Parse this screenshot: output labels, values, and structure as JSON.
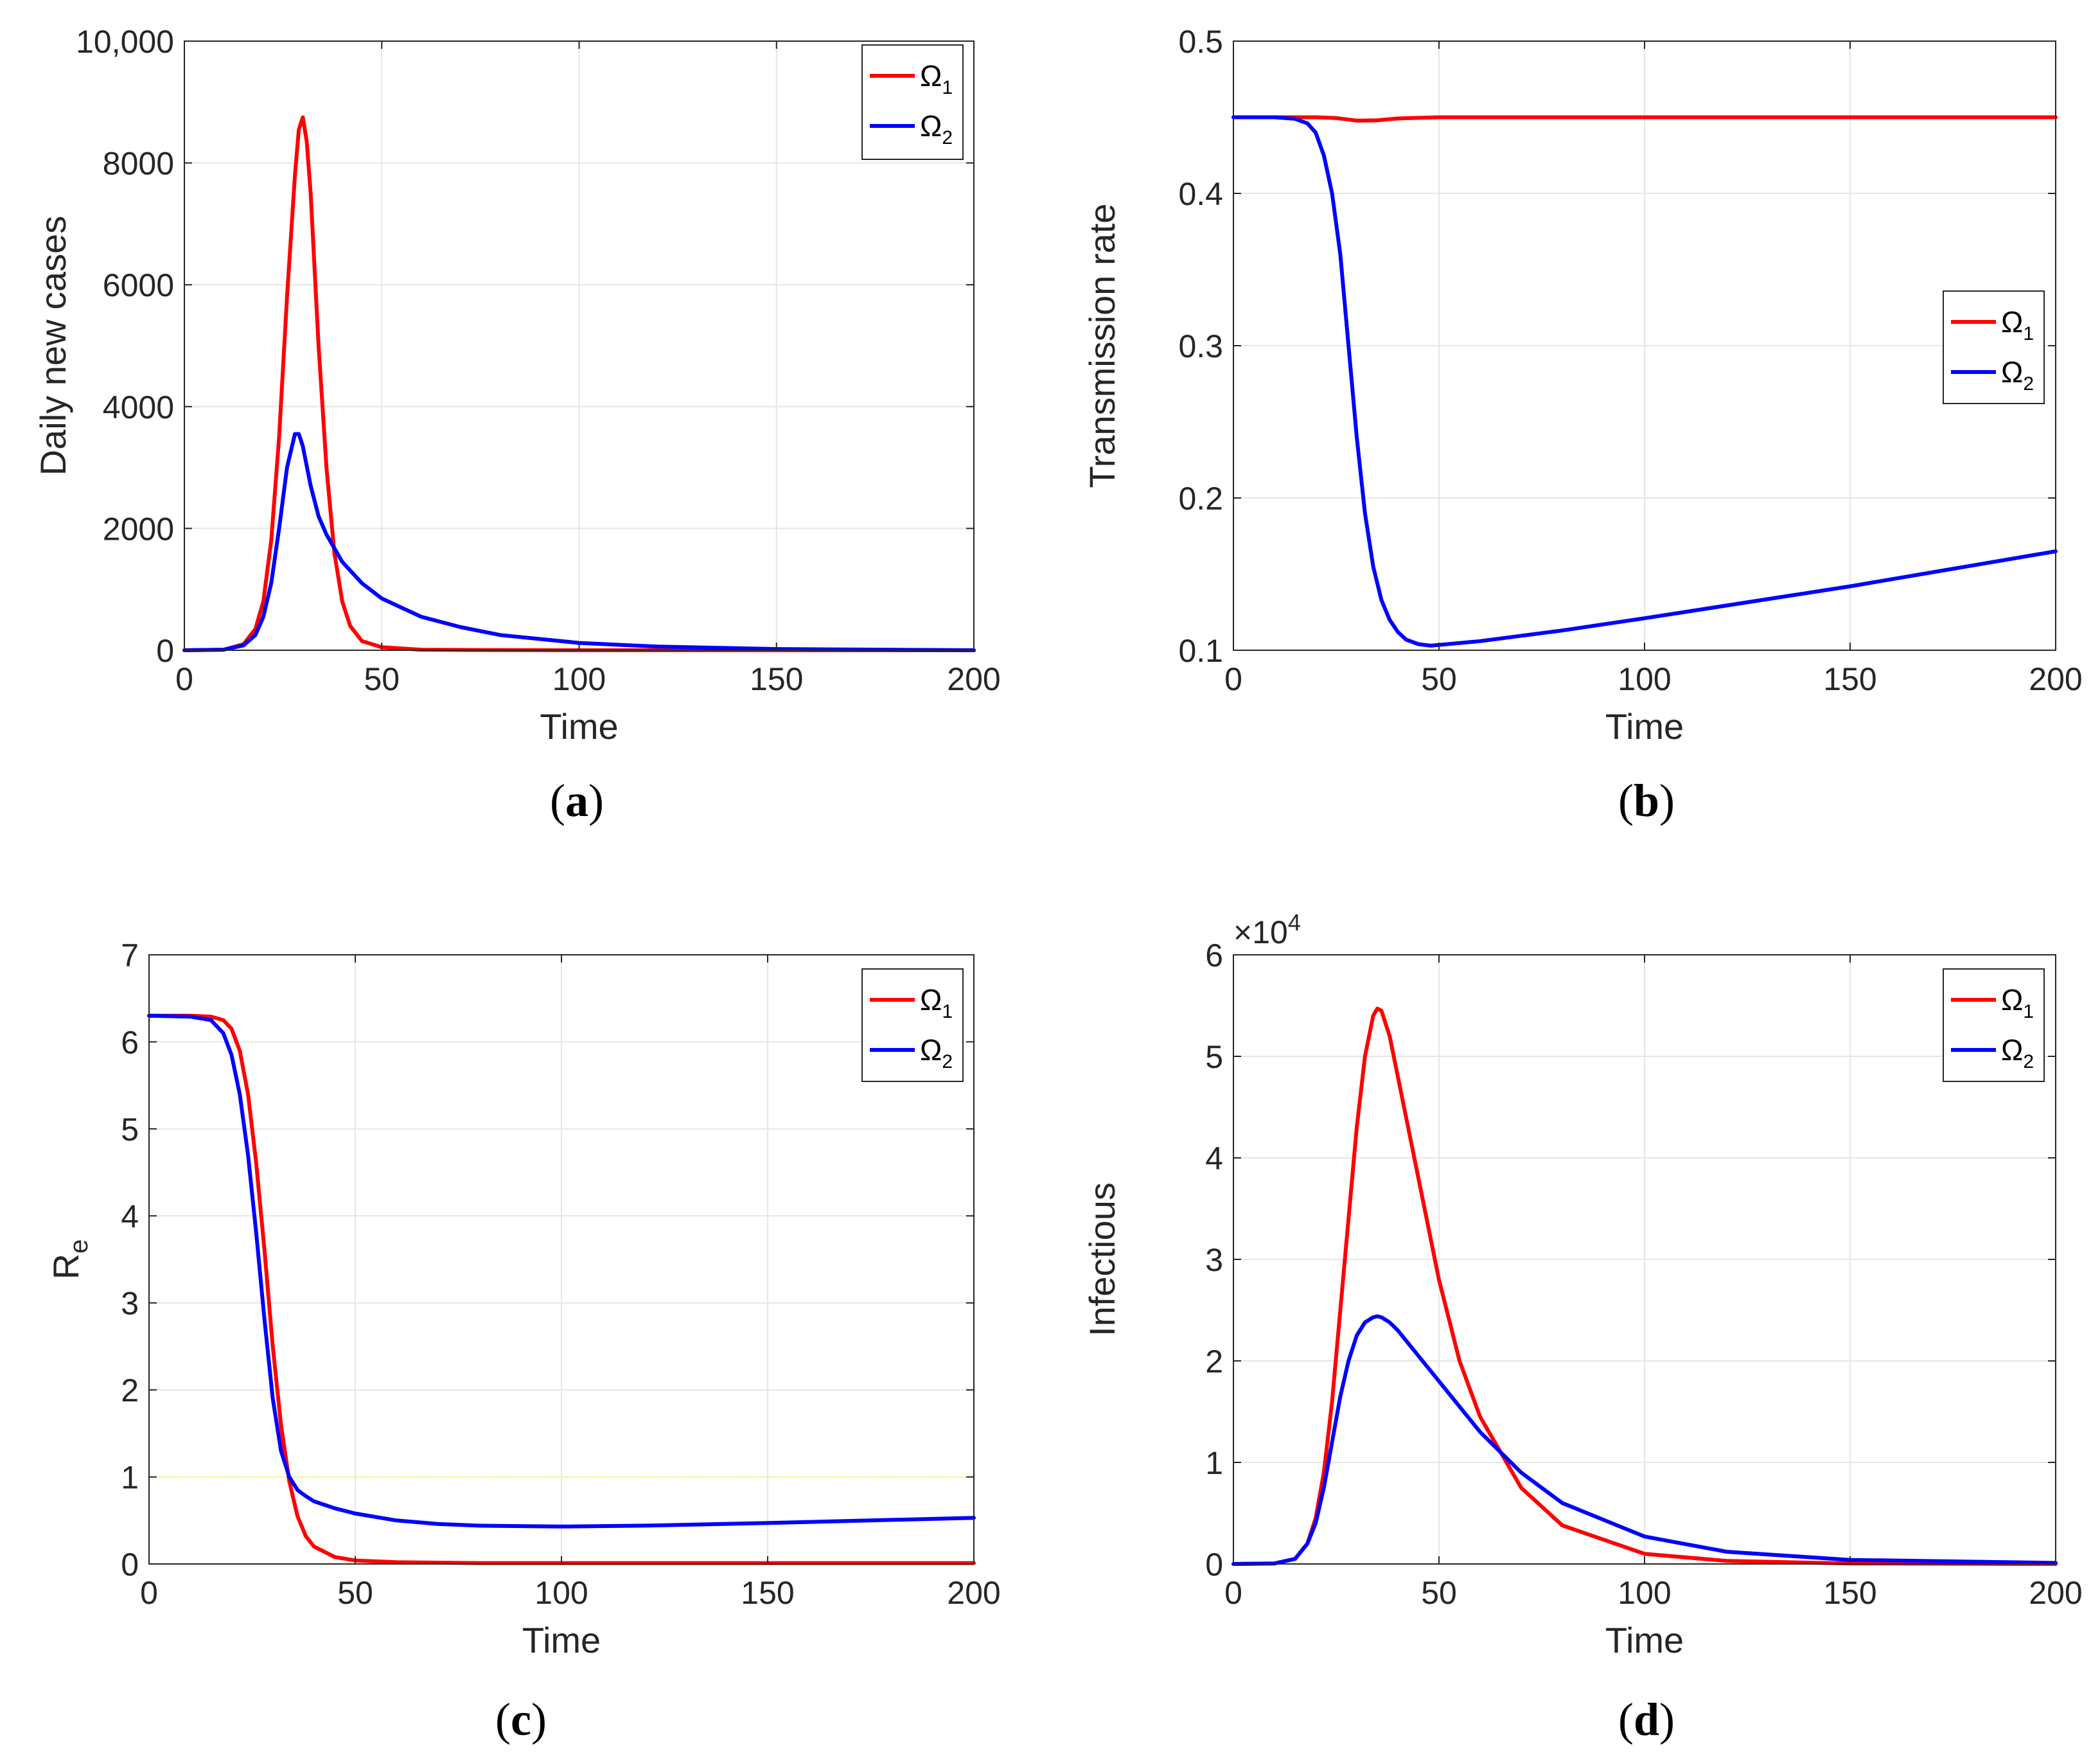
{
  "colors": {
    "omega1": "#ff0000",
    "omega2": "#0000ff",
    "threshold": "#ffff66",
    "axis": "#262626",
    "grid": "#e6e6e6"
  },
  "chart_data": [
    {
      "id": "a",
      "type": "line",
      "panel_label": "a",
      "xlabel": "Time",
      "ylabel": "Daily new cases",
      "xlim": [
        0,
        200
      ],
      "ylim": [
        0,
        10000
      ],
      "xticks": [
        0,
        50,
        100,
        150,
        200
      ],
      "xtick_labels": [
        "0",
        "50",
        "100",
        "150",
        "200"
      ],
      "yticks": [
        0,
        2000,
        4000,
        6000,
        8000,
        10000
      ],
      "ytick_labels": [
        "0",
        "2000",
        "4000",
        "6000",
        "8000",
        "10,000"
      ],
      "grid": true,
      "legend_position": "top-right",
      "series": [
        {
          "name": "Ω1",
          "base": "Ω",
          "sub": "1",
          "color": "#ff0000",
          "x": [
            0,
            10,
            15,
            18,
            20,
            22,
            24,
            26,
            28,
            29,
            30,
            31,
            32,
            34,
            36,
            38,
            40,
            42,
            45,
            50,
            60,
            80,
            100,
            150,
            200
          ],
          "y": [
            0,
            10,
            100,
            350,
            800,
            1800,
            3500,
            5800,
            7800,
            8550,
            8750,
            8350,
            7500,
            5000,
            3000,
            1600,
            800,
            400,
            150,
            50,
            10,
            2,
            0,
            0,
            0
          ]
        },
        {
          "name": "Ω2",
          "base": "Ω",
          "sub": "2",
          "color": "#0000ff",
          "x": [
            0,
            10,
            15,
            18,
            20,
            22,
            24,
            26,
            28,
            29,
            30,
            32,
            34,
            36,
            40,
            45,
            50,
            60,
            70,
            80,
            100,
            120,
            150,
            200
          ],
          "y": [
            0,
            10,
            80,
            250,
            550,
            1100,
            2000,
            3000,
            3550,
            3550,
            3350,
            2700,
            2200,
            1900,
            1450,
            1100,
            850,
            550,
            380,
            250,
            120,
            60,
            20,
            0
          ]
        }
      ]
    },
    {
      "id": "b",
      "type": "line",
      "panel_label": "b",
      "xlabel": "Time",
      "ylabel": "Transmission rate",
      "xlim": [
        0,
        200
      ],
      "ylim": [
        0.1,
        0.5
      ],
      "xticks": [
        0,
        50,
        100,
        150,
        200
      ],
      "xtick_labels": [
        "0",
        "50",
        "100",
        "150",
        "200"
      ],
      "yticks": [
        0.1,
        0.2,
        0.3,
        0.4,
        0.5
      ],
      "ytick_labels": [
        "0.1",
        "0.2",
        "0.3",
        "0.4",
        "0.5"
      ],
      "grid": true,
      "legend_position": "right",
      "series": [
        {
          "name": "Ω1",
          "base": "Ω",
          "sub": "1",
          "color": "#ff0000",
          "x": [
            0,
            20,
            25,
            30,
            35,
            40,
            50,
            100,
            150,
            200
          ],
          "y": [
            0.45,
            0.45,
            0.4495,
            0.4478,
            0.448,
            0.4492,
            0.45,
            0.45,
            0.45,
            0.45
          ]
        },
        {
          "name": "Ω2",
          "base": "Ω",
          "sub": "2",
          "color": "#0000ff",
          "x": [
            0,
            10,
            15,
            18,
            20,
            22,
            24,
            26,
            28,
            30,
            32,
            34,
            36,
            38,
            40,
            42,
            45,
            48,
            50,
            60,
            80,
            100,
            150,
            200
          ],
          "y": [
            0.45,
            0.45,
            0.449,
            0.446,
            0.44,
            0.425,
            0.4,
            0.36,
            0.3,
            0.24,
            0.19,
            0.155,
            0.133,
            0.12,
            0.112,
            0.107,
            0.104,
            0.103,
            0.1035,
            0.106,
            0.113,
            0.121,
            0.142,
            0.165
          ]
        }
      ]
    },
    {
      "id": "c",
      "type": "line",
      "panel_label": "c",
      "xlabel": "Time",
      "ylabel": "R",
      "ylabel_sub": "e",
      "xlim": [
        0,
        200
      ],
      "ylim": [
        0,
        7
      ],
      "xticks": [
        0,
        50,
        100,
        150,
        200
      ],
      "xtick_labels": [
        "0",
        "50",
        "100",
        "150",
        "200"
      ],
      "yticks": [
        0,
        1,
        2,
        3,
        4,
        5,
        6,
        7
      ],
      "ytick_labels": [
        "0",
        "1",
        "2",
        "3",
        "4",
        "5",
        "6",
        "7"
      ],
      "grid": true,
      "legend_position": "top-right",
      "reference_line": {
        "y": 1,
        "color": "#ffff66"
      },
      "series": [
        {
          "name": "Ω1",
          "base": "Ω",
          "sub": "1",
          "color": "#ff0000",
          "x": [
            0,
            10,
            15,
            18,
            20,
            22,
            24,
            26,
            28,
            30,
            32,
            34,
            36,
            38,
            40,
            45,
            50,
            60,
            80,
            100,
            150,
            200
          ],
          "y": [
            6.3,
            6.3,
            6.29,
            6.25,
            6.15,
            5.9,
            5.4,
            4.6,
            3.6,
            2.5,
            1.6,
            0.95,
            0.55,
            0.32,
            0.2,
            0.08,
            0.04,
            0.02,
            0.01,
            0.01,
            0.01,
            0.01
          ]
        },
        {
          "name": "Ω2",
          "base": "Ω",
          "sub": "2",
          "color": "#0000ff",
          "x": [
            0,
            10,
            15,
            18,
            20,
            22,
            24,
            26,
            28,
            30,
            32,
            34,
            36,
            38,
            40,
            45,
            50,
            60,
            70,
            80,
            100,
            120,
            150,
            200
          ],
          "y": [
            6.3,
            6.29,
            6.25,
            6.1,
            5.85,
            5.4,
            4.7,
            3.8,
            2.8,
            1.9,
            1.3,
            1.0,
            0.85,
            0.78,
            0.72,
            0.64,
            0.58,
            0.5,
            0.46,
            0.44,
            0.43,
            0.44,
            0.47,
            0.53
          ]
        }
      ]
    },
    {
      "id": "d",
      "type": "line",
      "panel_label": "d",
      "xlabel": "Time",
      "ylabel": "Infectious",
      "y_multiplier": "×10",
      "y_multiplier_exp": "4",
      "xlim": [
        0,
        200
      ],
      "ylim": [
        0,
        6
      ],
      "xticks": [
        0,
        50,
        100,
        150,
        200
      ],
      "xtick_labels": [
        "0",
        "50",
        "100",
        "150",
        "200"
      ],
      "yticks": [
        0,
        1,
        2,
        3,
        4,
        5,
        6
      ],
      "ytick_labels": [
        "0",
        "1",
        "2",
        "3",
        "4",
        "5",
        "6"
      ],
      "grid": true,
      "legend_position": "top-right",
      "series": [
        {
          "name": "Ω1",
          "base": "Ω",
          "sub": "1",
          "color": "#ff0000",
          "x": [
            0,
            10,
            15,
            18,
            20,
            22,
            24,
            26,
            28,
            30,
            32,
            34,
            35,
            36,
            38,
            40,
            45,
            50,
            55,
            60,
            70,
            80,
            100,
            120,
            150,
            200
          ],
          "y": [
            0,
            0.005,
            0.05,
            0.2,
            0.45,
            0.9,
            1.6,
            2.5,
            3.4,
            4.3,
            5.0,
            5.4,
            5.47,
            5.45,
            5.2,
            4.8,
            3.8,
            2.8,
            2.0,
            1.45,
            0.75,
            0.38,
            0.1,
            0.03,
            0.005,
            0
          ]
        },
        {
          "name": "Ω2",
          "base": "Ω",
          "sub": "2",
          "color": "#0000ff",
          "x": [
            0,
            10,
            15,
            18,
            20,
            22,
            24,
            26,
            28,
            30,
            32,
            34,
            35,
            36,
            38,
            40,
            45,
            50,
            55,
            60,
            70,
            80,
            100,
            120,
            150,
            200
          ],
          "y": [
            0,
            0.005,
            0.05,
            0.2,
            0.4,
            0.75,
            1.2,
            1.65,
            2.0,
            2.25,
            2.38,
            2.43,
            2.44,
            2.43,
            2.38,
            2.3,
            2.05,
            1.8,
            1.55,
            1.3,
            0.9,
            0.6,
            0.27,
            0.12,
            0.04,
            0.01
          ]
        }
      ]
    }
  ]
}
